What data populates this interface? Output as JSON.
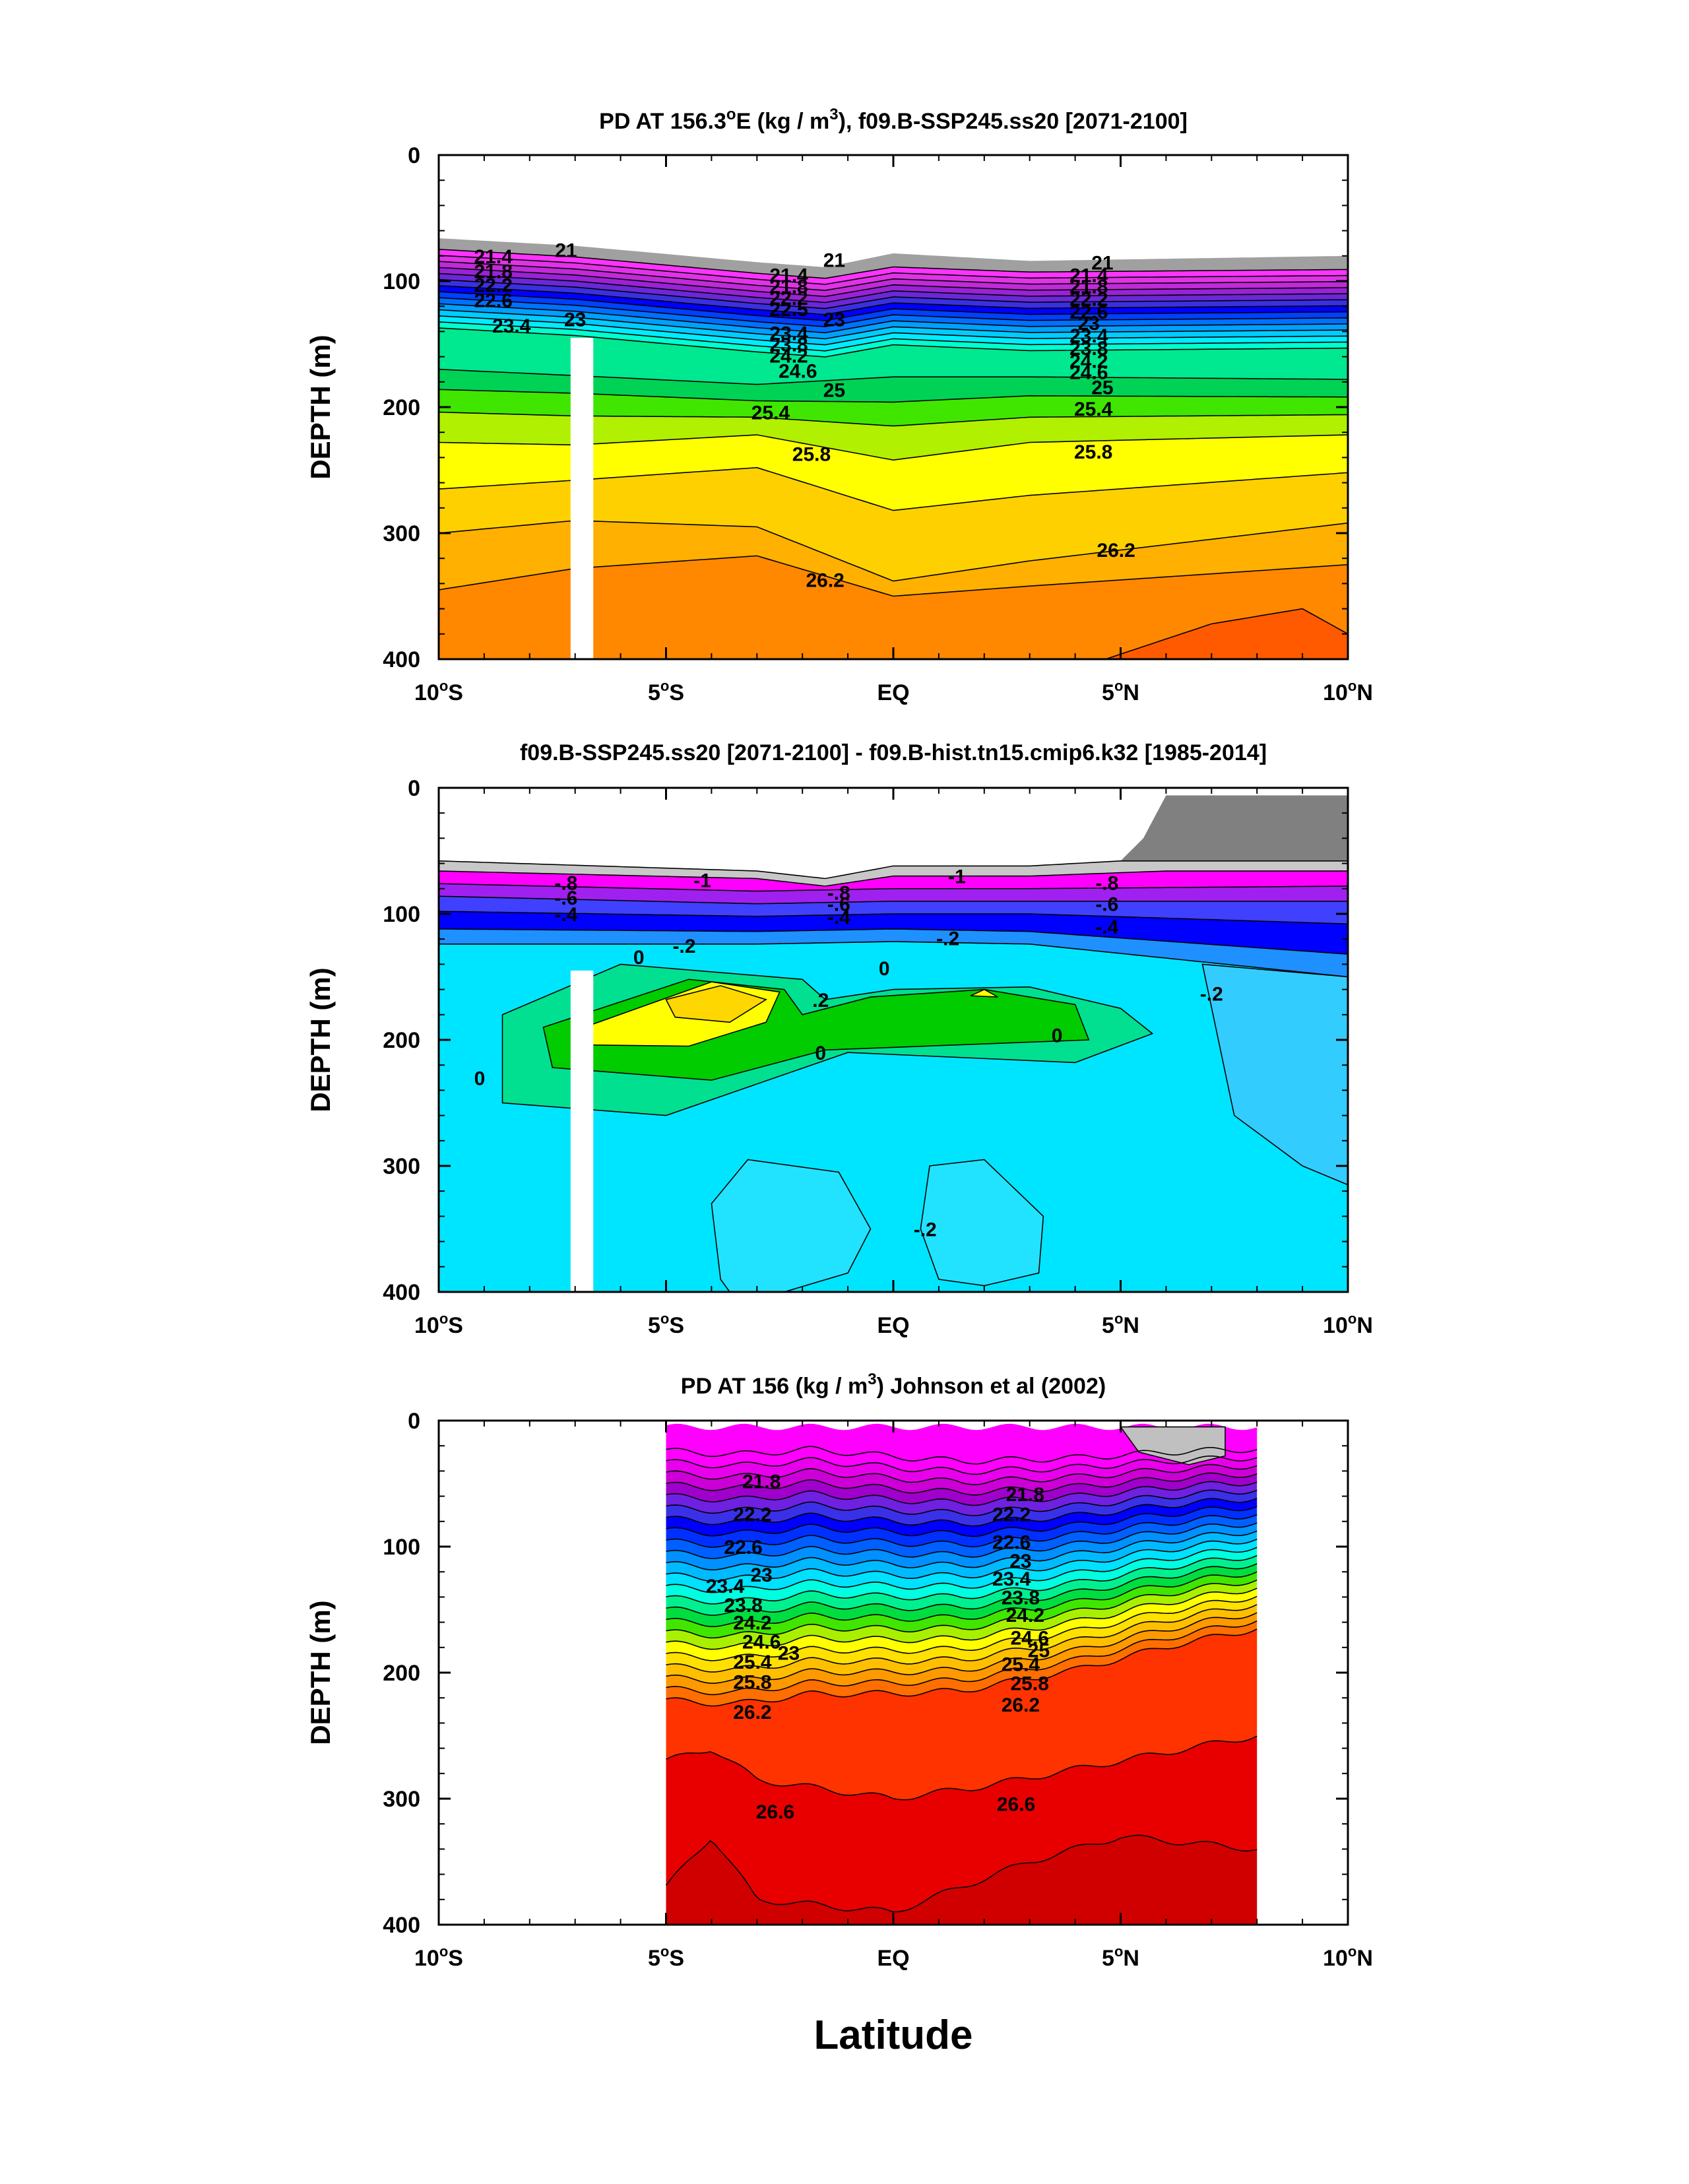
{
  "figure": {
    "x_axis_title": "Latitude",
    "colors": {
      "pd_scale": [
        "#f0f0f0",
        "#a0a0a0",
        "#ff33ff",
        "#cc33cc",
        "#8f1fd6",
        "#4b2bd6",
        "#0000ff",
        "#0050ff",
        "#007fff",
        "#00b4ff",
        "#00e0ff",
        "#00ffd8",
        "#00e89f",
        "#00d255",
        "#00e600",
        "#90f000",
        "#ffff00",
        "#ffd700",
        "#ffb000",
        "#ff8800",
        "#ff5a00",
        "#ff2a00",
        "#f00000",
        "#d40000",
        "#b80000"
      ],
      "diff_scale": [
        "#808080",
        "#c8c8c8",
        "#ff00ff",
        "#a020f0",
        "#4040ff",
        "#0000ff",
        "#1e90ff",
        "#33ccff",
        "#00e5ff",
        "#00ff99",
        "#00cc00",
        "#ffff00",
        "#ffd700"
      ],
      "void": "#ffffff",
      "contour_line": "#000000"
    }
  },
  "chart_data": [
    {
      "type": "contour",
      "title_main": "PD AT 156.3",
      "title_sup1": "o",
      "title_mid": "E (kg / m",
      "title_sup2": "3",
      "title_end": "), f09.B-SSP245.ss20 [2071-2100]",
      "ylabel": "DEPTH (m)",
      "xlabel": "",
      "xlim": [
        -10,
        10
      ],
      "ylim": [
        400,
        0
      ],
      "yticks": [
        "0",
        "100",
        "200",
        "300",
        "400"
      ],
      "xticks": [
        {
          "num": "10",
          "hem": "S"
        },
        {
          "num": "5",
          "hem": "S"
        },
        {
          "num": "EQ",
          "hem": ""
        },
        {
          "num": "5",
          "hem": "N"
        },
        {
          "num": "10",
          "hem": "N"
        }
      ],
      "masked_band_lat": [
        -7.1,
        -6.6
      ],
      "masked_band_depth_top": 145,
      "contour_labels": [
        {
          "text": "21",
          "lat": -7.2,
          "depth": 75
        },
        {
          "text": "21.4",
          "lat": -8.8,
          "depth": 80
        },
        {
          "text": "21.8",
          "lat": -8.8,
          "depth": 92
        },
        {
          "text": "22.2",
          "lat": -8.8,
          "depth": 103
        },
        {
          "text": "22.6",
          "lat": -8.8,
          "depth": 115
        },
        {
          "text": "23.4",
          "lat": -8.4,
          "depth": 135
        },
        {
          "text": "23",
          "lat": -7.0,
          "depth": 130
        },
        {
          "text": "21",
          "lat": -1.3,
          "depth": 83
        },
        {
          "text": "21.4",
          "lat": -2.3,
          "depth": 95
        },
        {
          "text": "21.8",
          "lat": -2.3,
          "depth": 104
        },
        {
          "text": "22.2",
          "lat": -2.3,
          "depth": 113
        },
        {
          "text": "22.5",
          "lat": -2.3,
          "depth": 122
        },
        {
          "text": "23",
          "lat": -1.3,
          "depth": 130
        },
        {
          "text": "23.4",
          "lat": -2.3,
          "depth": 141
        },
        {
          "text": "23.8",
          "lat": -2.3,
          "depth": 150
        },
        {
          "text": "24.2",
          "lat": -2.3,
          "depth": 159
        },
        {
          "text": "24.6",
          "lat": -2.1,
          "depth": 171
        },
        {
          "text": "25",
          "lat": -1.3,
          "depth": 186
        },
        {
          "text": "25.4",
          "lat": -2.7,
          "depth": 204
        },
        {
          "text": "25.8",
          "lat": -1.8,
          "depth": 237
        },
        {
          "text": "26.2",
          "lat": -1.5,
          "depth": 337
        },
        {
          "text": "21",
          "lat": 4.6,
          "depth": 85
        },
        {
          "text": "21.4",
          "lat": 4.3,
          "depth": 95
        },
        {
          "text": "21.8",
          "lat": 4.3,
          "depth": 104
        },
        {
          "text": "22.2",
          "lat": 4.3,
          "depth": 114
        },
        {
          "text": "22.6",
          "lat": 4.3,
          "depth": 124
        },
        {
          "text": "23",
          "lat": 4.3,
          "depth": 133
        },
        {
          "text": "23.4",
          "lat": 4.3,
          "depth": 143
        },
        {
          "text": "23.8",
          "lat": 4.3,
          "depth": 153
        },
        {
          "text": "24.2",
          "lat": 4.3,
          "depth": 163
        },
        {
          "text": "24.6",
          "lat": 4.3,
          "depth": 172
        },
        {
          "text": "25",
          "lat": 4.6,
          "depth": 184
        },
        {
          "text": "25.4",
          "lat": 4.4,
          "depth": 201
        },
        {
          "text": "25.8",
          "lat": 4.4,
          "depth": 235
        },
        {
          "text": "26.2",
          "lat": 4.9,
          "depth": 313
        }
      ]
    },
    {
      "type": "contour",
      "title_main": "f09.B-SSP245.ss20 [2071-2100] - f09.B-hist.tn15.cmip6.k32 [1985-2014]",
      "ylabel": "DEPTH (m)",
      "xlabel": "",
      "xlim": [
        -10,
        10
      ],
      "ylim": [
        400,
        0
      ],
      "yticks": [
        "0",
        "100",
        "200",
        "300",
        "400"
      ],
      "xticks": [
        {
          "num": "10",
          "hem": "S"
        },
        {
          "num": "5",
          "hem": "S"
        },
        {
          "num": "EQ",
          "hem": ""
        },
        {
          "num": "5",
          "hem": "N"
        },
        {
          "num": "10",
          "hem": "N"
        }
      ],
      "masked_band_lat": [
        -7.1,
        -6.6
      ],
      "masked_band_depth_top": 145,
      "contour_labels": [
        {
          "text": "-1",
          "lat": -4.2,
          "depth": 73
        },
        {
          "text": "-.8",
          "lat": -7.2,
          "depth": 75
        },
        {
          "text": "-.6",
          "lat": -7.2,
          "depth": 87
        },
        {
          "text": "-.4",
          "lat": -7.2,
          "depth": 100
        },
        {
          "text": "-.8",
          "lat": -1.2,
          "depth": 83
        },
        {
          "text": "-.6",
          "lat": -1.2,
          "depth": 92
        },
        {
          "text": "-.4",
          "lat": -1.2,
          "depth": 102
        },
        {
          "text": "-.2",
          "lat": -4.6,
          "depth": 125
        },
        {
          "text": "-1",
          "lat": 1.4,
          "depth": 70
        },
        {
          "text": "-.2",
          "lat": 1.2,
          "depth": 119
        },
        {
          "text": "-.8",
          "lat": 4.7,
          "depth": 75
        },
        {
          "text": "-.6",
          "lat": 4.7,
          "depth": 92
        },
        {
          "text": "-.4",
          "lat": 4.7,
          "depth": 110
        },
        {
          "text": "0",
          "lat": -5.6,
          "depth": 134
        },
        {
          "text": "0",
          "lat": -0.2,
          "depth": 143
        },
        {
          "text": ".2",
          "lat": -1.6,
          "depth": 168
        },
        {
          "text": "0",
          "lat": -1.6,
          "depth": 210
        },
        {
          "text": "0",
          "lat": 3.6,
          "depth": 196
        },
        {
          "text": "0",
          "lat": -9.1,
          "depth": 230
        },
        {
          "text": "-.2",
          "lat": 7.0,
          "depth": 163
        },
        {
          "text": "-.2",
          "lat": 0.7,
          "depth": 350
        }
      ]
    },
    {
      "type": "contour",
      "title_main": "PD AT 156 (kg / m",
      "title_sup2": "3",
      "title_end": ") Johnson et al (2002)",
      "ylabel": "DEPTH (m)",
      "xlabel": "Latitude",
      "xlim": [
        -10,
        10
      ],
      "ylim": [
        400,
        0
      ],
      "data_lat_range": [
        -5,
        8
      ],
      "yticks": [
        "0",
        "100",
        "200",
        "300",
        "400"
      ],
      "xticks": [
        {
          "num": "10",
          "hem": "S"
        },
        {
          "num": "5",
          "hem": "S"
        },
        {
          "num": "EQ",
          "hem": ""
        },
        {
          "num": "5",
          "hem": "N"
        },
        {
          "num": "10",
          "hem": "N"
        }
      ],
      "contour_labels": [
        {
          "text": "21.8",
          "lat": -2.9,
          "depth": 48
        },
        {
          "text": "22.2",
          "lat": -3.1,
          "depth": 74
        },
        {
          "text": "22.6",
          "lat": -3.3,
          "depth": 100
        },
        {
          "text": "23",
          "lat": -2.9,
          "depth": 122
        },
        {
          "text": "23.4",
          "lat": -3.7,
          "depth": 131
        },
        {
          "text": "23.8",
          "lat": -3.3,
          "depth": 146
        },
        {
          "text": "24.2",
          "lat": -3.1,
          "depth": 160
        },
        {
          "text": "24.6",
          "lat": -2.9,
          "depth": 175
        },
        {
          "text": "23",
          "lat": -2.3,
          "depth": 184
        },
        {
          "text": "25.4",
          "lat": -3.1,
          "depth": 191
        },
        {
          "text": "25.8",
          "lat": -3.1,
          "depth": 207
        },
        {
          "text": "26.2",
          "lat": -3.1,
          "depth": 231
        },
        {
          "text": "26.6",
          "lat": -2.6,
          "depth": 310
        },
        {
          "text": "21.8",
          "lat": 2.9,
          "depth": 58
        },
        {
          "text": "22.2",
          "lat": 2.6,
          "depth": 74
        },
        {
          "text": "22.6",
          "lat": 2.6,
          "depth": 96
        },
        {
          "text": "23",
          "lat": 2.8,
          "depth": 111
        },
        {
          "text": "23.4",
          "lat": 2.6,
          "depth": 125
        },
        {
          "text": "23.8",
          "lat": 2.8,
          "depth": 140
        },
        {
          "text": "24.2",
          "lat": 2.9,
          "depth": 154
        },
        {
          "text": "24.6",
          "lat": 3.0,
          "depth": 172
        },
        {
          "text": "25",
          "lat": 3.2,
          "depth": 182
        },
        {
          "text": "25.4",
          "lat": 2.8,
          "depth": 193
        },
        {
          "text": "25.8",
          "lat": 3.0,
          "depth": 208
        },
        {
          "text": "26.2",
          "lat": 2.8,
          "depth": 225
        },
        {
          "text": "26.6",
          "lat": 2.7,
          "depth": 304
        }
      ]
    }
  ]
}
